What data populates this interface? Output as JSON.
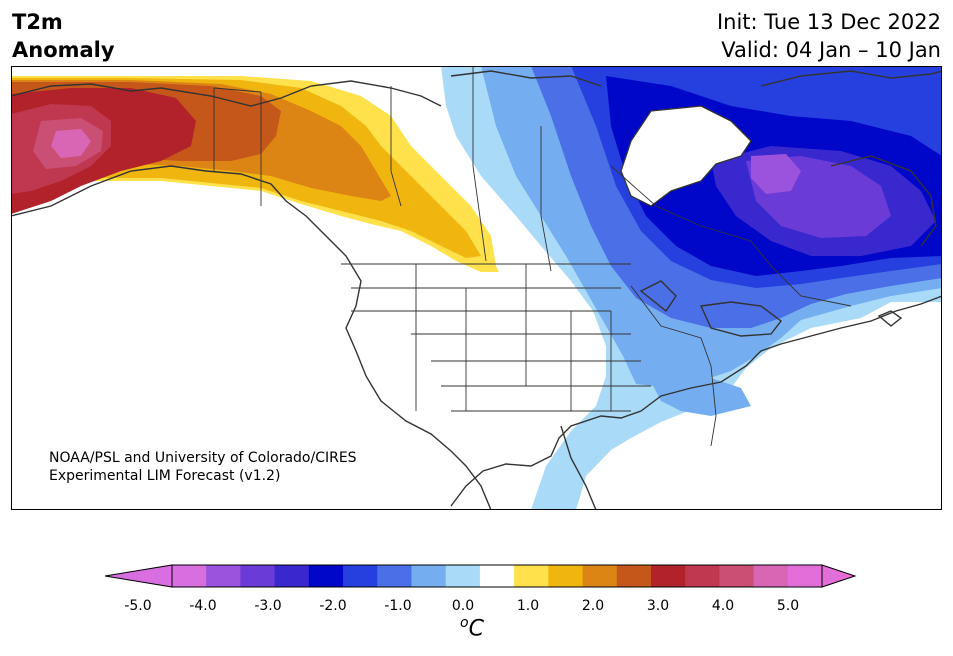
{
  "title": {
    "variable_line1": "T2m",
    "variable_line2": "Anomaly",
    "init": "Init: Tue 13 Dec 2022",
    "valid": "Valid: 04 Jan – 10 Jan"
  },
  "credit": {
    "line1": "NOAA/PSL and University of Colorado/CIRES",
    "line2": "Experimental LIM Forecast (v1.2)"
  },
  "colorbar": {
    "unit_base": "C",
    "unit_sup": "o",
    "tick_labels": [
      "-5.0",
      "-4.0",
      "-3.0",
      "-2.0",
      "-1.0",
      "0.0",
      "1.0",
      "2.0",
      "3.0",
      "4.0",
      "5.0"
    ],
    "levels": [
      -5.0,
      -4.5,
      -4.0,
      -3.5,
      -3.0,
      -2.5,
      -2.0,
      -1.5,
      -1.0,
      -0.5,
      0.5,
      1.0,
      1.5,
      2.0,
      2.5,
      3.0,
      3.5,
      4.0,
      4.5,
      5.0
    ],
    "colors": [
      "#d86ee0",
      "#9b52dc",
      "#6a3bd6",
      "#3a28cf",
      "#0007c9",
      "#2540de",
      "#4a6fe6",
      "#75aef0",
      "#a9daf8",
      "#ffffff",
      "#ffe14c",
      "#f0b60f",
      "#dc8515",
      "#c6571a",
      "#b1222a",
      "#c0384f",
      "#ca4f74",
      "#d966b4",
      "#e46ed9"
    ],
    "extend_low_color": "#d86ee0",
    "extend_high_color": "#e46ed9"
  }
}
